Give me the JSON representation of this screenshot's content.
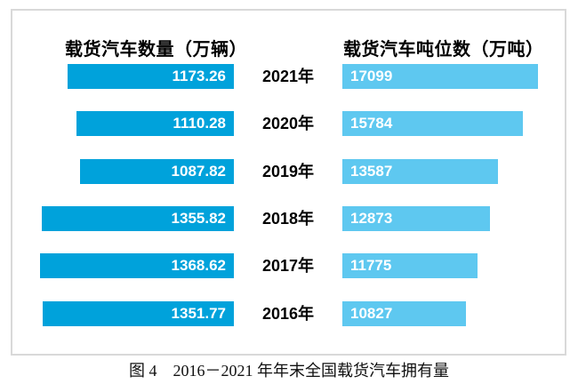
{
  "caption": "图 4　2016－2021 年年末全国载货汽车拥有量",
  "colors": {
    "left_bar": "#00a2db",
    "right_bar": "#5ec8f0",
    "frame_border": "#d9d9d9",
    "bar_label_text": "#ffffff",
    "text": "#000000"
  },
  "chart_data": {
    "type": "bar",
    "subtype": "bidirectional-horizontal",
    "title": "图 4　2016－2021 年年末全国载货汽车拥有量",
    "categories": [
      "2021年",
      "2020年",
      "2019年",
      "2018年",
      "2017年",
      "2016年"
    ],
    "left_title": "载货汽车数量（万辆）",
    "right_title": "载货汽车吨位数（万吨）",
    "series": [
      {
        "name": "载货汽车数量（万辆）",
        "side": "left",
        "color": "#00a2db",
        "decimals": 2,
        "values": [
          1173.26,
          1110.28,
          1087.82,
          1355.82,
          1368.62,
          1351.77
        ]
      },
      {
        "name": "载货汽车吨位数（万吨）",
        "side": "right",
        "color": "#5ec8f0",
        "decimals": 0,
        "values": [
          17099,
          15784,
          13587,
          12873,
          11775,
          10827
        ]
      }
    ],
    "value_labels": "inside-bar-white-bold",
    "grid": false,
    "axes_shown": false
  }
}
